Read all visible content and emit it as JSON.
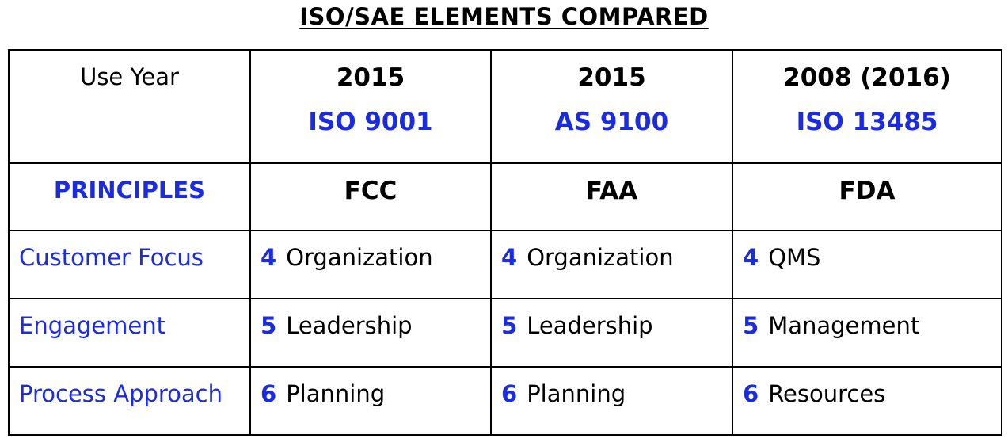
{
  "title": "ISO/SAE ELEMENTS COMPARED",
  "header": {
    "label": "Use Year",
    "standards": [
      {
        "year": "2015",
        "name": "ISO 9001"
      },
      {
        "year": "2015",
        "name": "AS 9100"
      },
      {
        "year": "2008 (2016)",
        "name": "ISO 13485"
      }
    ]
  },
  "authorities": {
    "label": "PRINCIPLES",
    "values": [
      "FCC",
      "FAA",
      "FDA"
    ]
  },
  "rows": [
    {
      "principle": "Customer Focus",
      "clauses": [
        {
          "num": "4",
          "text": "Organization"
        },
        {
          "num": "4",
          "text": "Organization"
        },
        {
          "num": "4",
          "text": "QMS"
        }
      ]
    },
    {
      "principle": "Engagement",
      "clauses": [
        {
          "num": "5",
          "text": "Leadership"
        },
        {
          "num": "5",
          "text": "Leadership"
        },
        {
          "num": "5",
          "text": "Management"
        }
      ]
    },
    {
      "principle": "Process Approach",
      "clauses": [
        {
          "num": "6",
          "text": "Planning"
        },
        {
          "num": "6",
          "text": "Planning"
        },
        {
          "num": "6",
          "text": "Resources"
        }
      ]
    }
  ],
  "colors": {
    "accent": "#1a2be0",
    "text": "#000000",
    "border": "#000000"
  }
}
